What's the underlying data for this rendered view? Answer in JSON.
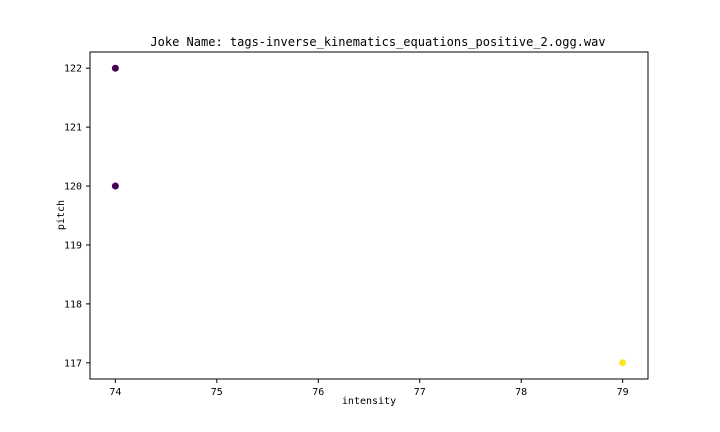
{
  "chart_data": {
    "type": "scatter",
    "title": "Joke Name: tags-inverse_kinematics_equations_positive_2.ogg.wav",
    "xlabel": "intensity",
    "ylabel": "pitch",
    "xlim": [
      73.75,
      79.25
    ],
    "ylim": [
      116.725,
      122.275
    ],
    "x_ticks": [
      "74",
      "75",
      "76",
      "77",
      "78",
      "79"
    ],
    "y_ticks": [
      "117",
      "118",
      "119",
      "120",
      "121",
      "122"
    ],
    "grid": false,
    "points": [
      {
        "x": 74,
        "y": 122,
        "color": "#440154"
      },
      {
        "x": 74,
        "y": 120,
        "color": "#440154"
      },
      {
        "x": 79,
        "y": 117,
        "color": "#fde725"
      }
    ]
  }
}
